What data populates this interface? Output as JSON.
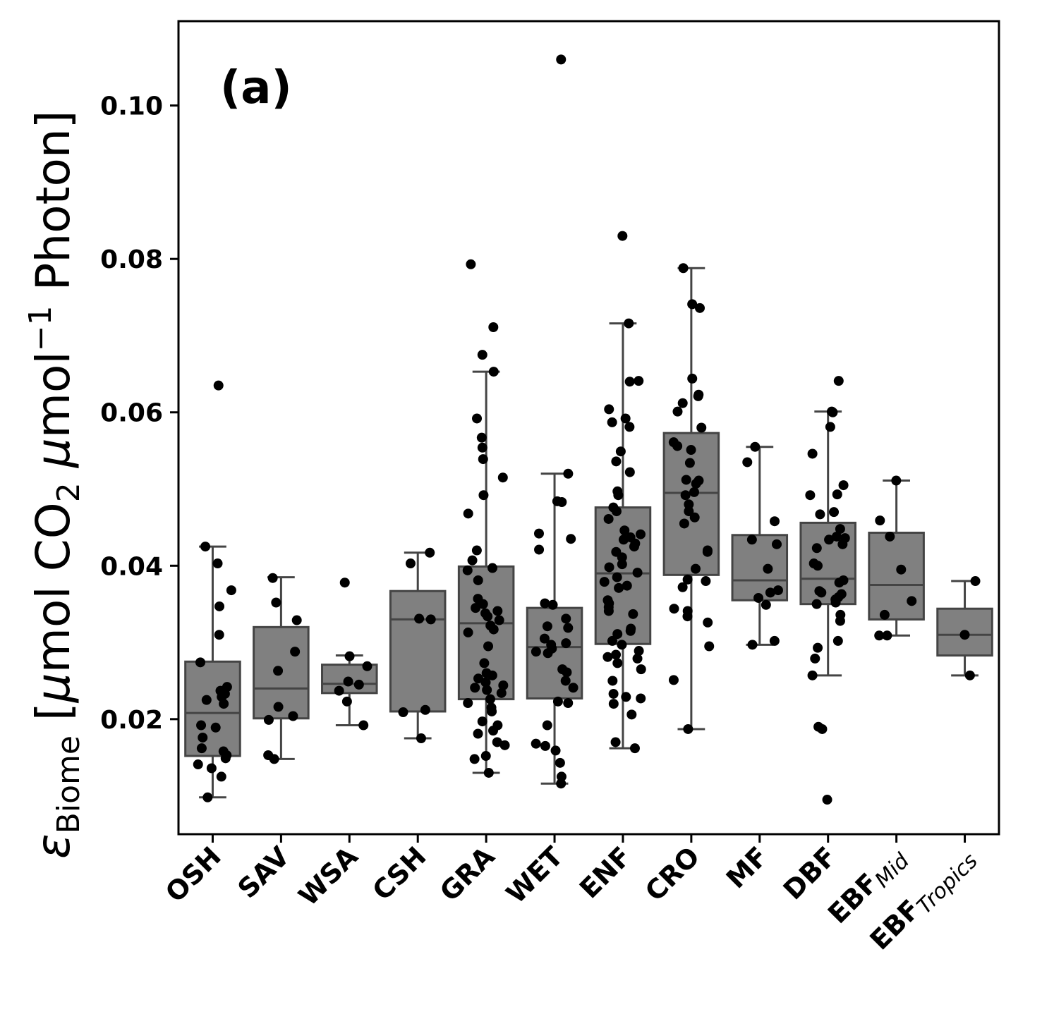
{
  "chart_data": {
    "type": "box",
    "panel_label": "(a)",
    "ylabel": {
      "symbol": "ε",
      "subscript": "Biome",
      "units_open": " [",
      "mu1": "μ",
      "units_mid1": "mol CO",
      "co2_sub": "2",
      "units_space": " ",
      "mu2": "μ",
      "units_mid2": "mol",
      "superscript": "−1",
      "units_end": " Photon]"
    },
    "ylim": [
      0.005,
      0.111
    ],
    "yticks": [
      0.02,
      0.04,
      0.06,
      0.08,
      0.1
    ],
    "ytick_labels": [
      "0.02",
      "0.04",
      "0.06",
      "0.08",
      "0.10"
    ],
    "grid": false,
    "colors": {
      "box_fill": "#808080",
      "box_edge": "#444444",
      "point": "#000000"
    },
    "categories": [
      {
        "label": "OSH",
        "sub": ""
      },
      {
        "label": "SAV",
        "sub": ""
      },
      {
        "label": "WSA",
        "sub": ""
      },
      {
        "label": "CSH",
        "sub": ""
      },
      {
        "label": "GRA",
        "sub": ""
      },
      {
        "label": "WET",
        "sub": ""
      },
      {
        "label": "ENF",
        "sub": ""
      },
      {
        "label": "CRO",
        "sub": ""
      },
      {
        "label": "MF",
        "sub": ""
      },
      {
        "label": "DBF",
        "sub": ""
      },
      {
        "label": "EBF",
        "sub": "Mid"
      },
      {
        "label": "EBF",
        "sub": "Tropics"
      }
    ],
    "boxes": [
      {
        "whislo": 0.0098,
        "q1": 0.0152,
        "med": 0.0208,
        "q3": 0.0275,
        "whishi": 0.0425
      },
      {
        "whislo": 0.0148,
        "q1": 0.0201,
        "med": 0.024,
        "q3": 0.032,
        "whishi": 0.0385
      },
      {
        "whislo": 0.0192,
        "q1": 0.0234,
        "med": 0.0246,
        "q3": 0.0271,
        "whishi": 0.0283
      },
      {
        "whislo": 0.0175,
        "q1": 0.021,
        "med": 0.033,
        "q3": 0.0367,
        "whishi": 0.0417
      },
      {
        "whislo": 0.013,
        "q1": 0.0226,
        "med": 0.0325,
        "q3": 0.0399,
        "whishi": 0.0653
      },
      {
        "whislo": 0.0116,
        "q1": 0.0227,
        "med": 0.0294,
        "q3": 0.0345,
        "whishi": 0.052
      },
      {
        "whislo": 0.0162,
        "q1": 0.0298,
        "med": 0.039,
        "q3": 0.0476,
        "whishi": 0.0716
      },
      {
        "whislo": 0.0187,
        "q1": 0.0388,
        "med": 0.0495,
        "q3": 0.0573,
        "whishi": 0.0788
      },
      {
        "whislo": 0.0297,
        "q1": 0.0355,
        "med": 0.0381,
        "q3": 0.044,
        "whishi": 0.0555
      },
      {
        "whislo": 0.0257,
        "q1": 0.035,
        "med": 0.0383,
        "q3": 0.0456,
        "whishi": 0.0601
      },
      {
        "whislo": 0.0309,
        "q1": 0.033,
        "med": 0.0375,
        "q3": 0.0443,
        "whishi": 0.0511
      },
      {
        "whislo": 0.0257,
        "q1": 0.0283,
        "med": 0.031,
        "q3": 0.0344,
        "whishi": 0.038
      }
    ],
    "points": [
      [
        0.0635,
        0.0425,
        0.0403,
        0.0368,
        0.0347,
        0.031,
        0.0274,
        0.0242,
        0.0237,
        0.0233,
        0.0229,
        0.0225,
        0.022,
        0.0192,
        0.0189,
        0.0176,
        0.0162,
        0.0158,
        0.0153,
        0.0149,
        0.0141,
        0.0136,
        0.0125,
        0.0098
      ],
      [
        0.0384,
        0.0352,
        0.0329,
        0.0288,
        0.0263,
        0.0216,
        0.0204,
        0.0199,
        0.0153,
        0.0148
      ],
      [
        0.0378,
        0.0282,
        0.0269,
        0.0249,
        0.0245,
        0.0237,
        0.0223,
        0.0192
      ],
      [
        0.0417,
        0.0403,
        0.0331,
        0.033,
        0.0212,
        0.0209,
        0.0175
      ],
      [
        0.0793,
        0.0711,
        0.0675,
        0.0653,
        0.0592,
        0.0567,
        0.0554,
        0.0539,
        0.0515,
        0.0492,
        0.0468,
        0.042,
        0.0407,
        0.0397,
        0.0394,
        0.0381,
        0.0357,
        0.035,
        0.0345,
        0.0341,
        0.0338,
        0.0334,
        0.0329,
        0.0322,
        0.0317,
        0.0313,
        0.0295,
        0.0273,
        0.026,
        0.0257,
        0.0253,
        0.0248,
        0.0244,
        0.0241,
        0.0238,
        0.0234,
        0.0226,
        0.0221,
        0.0215,
        0.021,
        0.0197,
        0.0192,
        0.0185,
        0.0181,
        0.017,
        0.0166,
        0.0152,
        0.0148,
        0.013
      ],
      [
        0.106,
        0.052,
        0.0484,
        0.0483,
        0.0442,
        0.0435,
        0.0421,
        0.0351,
        0.0349,
        0.0331,
        0.0321,
        0.0319,
        0.0305,
        0.0299,
        0.0297,
        0.0292,
        0.0288,
        0.0286,
        0.0265,
        0.0261,
        0.025,
        0.0241,
        0.0223,
        0.0221,
        0.0192,
        0.0168,
        0.0165,
        0.0159,
        0.0143,
        0.0125,
        0.0116
      ],
      [
        0.083,
        0.0716,
        0.0641,
        0.064,
        0.0604,
        0.0592,
        0.0587,
        0.0581,
        0.0549,
        0.0536,
        0.0522,
        0.0497,
        0.0492,
        0.0476,
        0.0471,
        0.0461,
        0.0446,
        0.0441,
        0.0437,
        0.0434,
        0.0429,
        0.0425,
        0.0418,
        0.0411,
        0.0402,
        0.0398,
        0.0391,
        0.0385,
        0.0379,
        0.0374,
        0.0371,
        0.0355,
        0.0351,
        0.0346,
        0.0341,
        0.0337,
        0.0318,
        0.0315,
        0.0311,
        0.0302,
        0.0297,
        0.0289,
        0.0284,
        0.0281,
        0.0279,
        0.0273,
        0.0265,
        0.025,
        0.0233,
        0.0229,
        0.0227,
        0.022,
        0.0206,
        0.017,
        0.0162
      ],
      [
        0.0788,
        0.0741,
        0.0736,
        0.0644,
        0.0623,
        0.0621,
        0.0612,
        0.0601,
        0.058,
        0.0561,
        0.0556,
        0.0551,
        0.0534,
        0.0512,
        0.0511,
        0.0507,
        0.0496,
        0.0492,
        0.048,
        0.0471,
        0.0463,
        0.0455,
        0.042,
        0.0418,
        0.0396,
        0.0382,
        0.038,
        0.0372,
        0.0344,
        0.0341,
        0.0334,
        0.0326,
        0.0295,
        0.0251,
        0.0187
      ],
      [
        0.0555,
        0.0535,
        0.0458,
        0.0434,
        0.0428,
        0.0396,
        0.0368,
        0.0365,
        0.0358,
        0.0349,
        0.0302,
        0.0297
      ],
      [
        0.0641,
        0.0601,
        0.06,
        0.0581,
        0.0546,
        0.0505,
        0.0493,
        0.0492,
        0.047,
        0.0467,
        0.0448,
        0.0438,
        0.0436,
        0.0434,
        0.0428,
        0.0423,
        0.0403,
        0.04,
        0.0381,
        0.0378,
        0.0367,
        0.0365,
        0.0363,
        0.0359,
        0.0356,
        0.0352,
        0.035,
        0.0336,
        0.0328,
        0.0302,
        0.0293,
        0.0279,
        0.0257,
        0.019,
        0.0187,
        0.0095
      ],
      [
        0.0511,
        0.0459,
        0.0438,
        0.0395,
        0.0354,
        0.0336,
        0.0309,
        0.0309
      ],
      [
        0.038,
        0.031,
        0.0257
      ]
    ]
  }
}
